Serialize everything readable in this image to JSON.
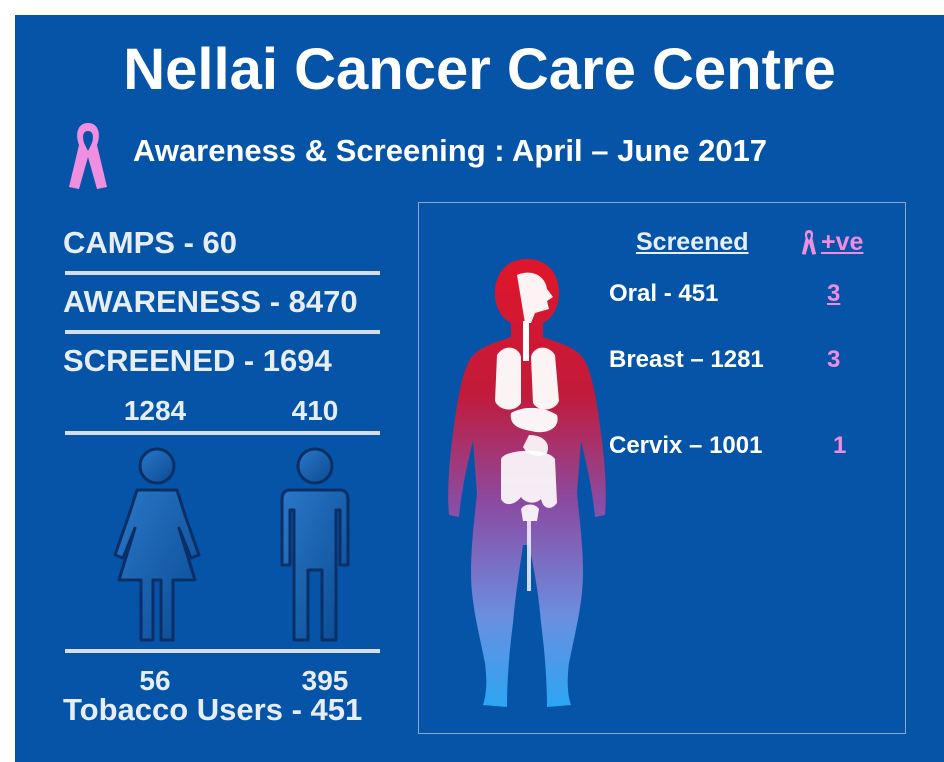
{
  "header": {
    "title": "Nellai Cancer Care Centre",
    "subtitle": "Awareness & Screening : April – June 2017",
    "ribbon_icon": "pink-ribbon-icon",
    "ribbon_color": "#f08fe0"
  },
  "stats": {
    "camps": "CAMPS - 60",
    "awareness": "AWARENESS - 8470",
    "screened": "SCREENED - 1694",
    "female_screened": "1284",
    "male_screened": "410",
    "female_tobacco": "56",
    "male_tobacco": "395",
    "tobacco_users": "Tobacco Users - 451"
  },
  "screening": {
    "header_screened": "Screened",
    "header_positive": "+ve",
    "rows": [
      {
        "label": "Oral -  451",
        "positive": "3"
      },
      {
        "label": "Breast – 1281",
        "positive": "3"
      },
      {
        "label": "Cervix – 1001",
        "positive": "1"
      }
    ]
  },
  "icons": [
    "female-figure-icon",
    "male-figure-icon",
    "human-anatomy-icon"
  ],
  "colors": {
    "background": "#0654a8",
    "text": "#ffffff",
    "positive": "#f28be0",
    "header_screened": "#e8eef8"
  }
}
